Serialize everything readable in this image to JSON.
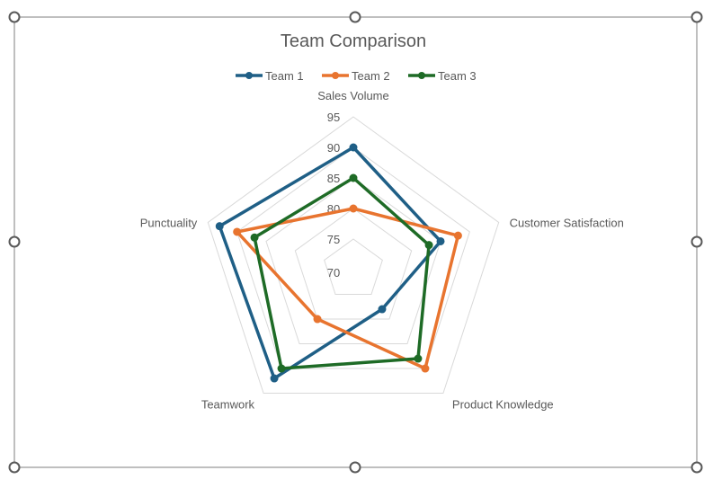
{
  "chart_data": {
    "type": "radar",
    "title": "Team Comparison",
    "axes": [
      "Sales Volume",
      "Customer Satisfaction",
      "Product Knowledge",
      "Teamwork",
      "Punctuality"
    ],
    "rlim": [
      70,
      95
    ],
    "ticks": [
      "70",
      "75",
      "80",
      "85",
      "90",
      "95"
    ],
    "grid": true,
    "legend_position": "top",
    "series": [
      {
        "name": "Team 1",
        "color": "#1f5f86",
        "values": [
          90,
          85,
          78,
          92,
          93
        ]
      },
      {
        "name": "Team 2",
        "color": "#e8742f",
        "values": [
          80,
          88,
          90,
          80,
          90
        ]
      },
      {
        "name": "Team 3",
        "color": "#1e6b26",
        "values": [
          85,
          83,
          88,
          90,
          87
        ]
      }
    ]
  }
}
